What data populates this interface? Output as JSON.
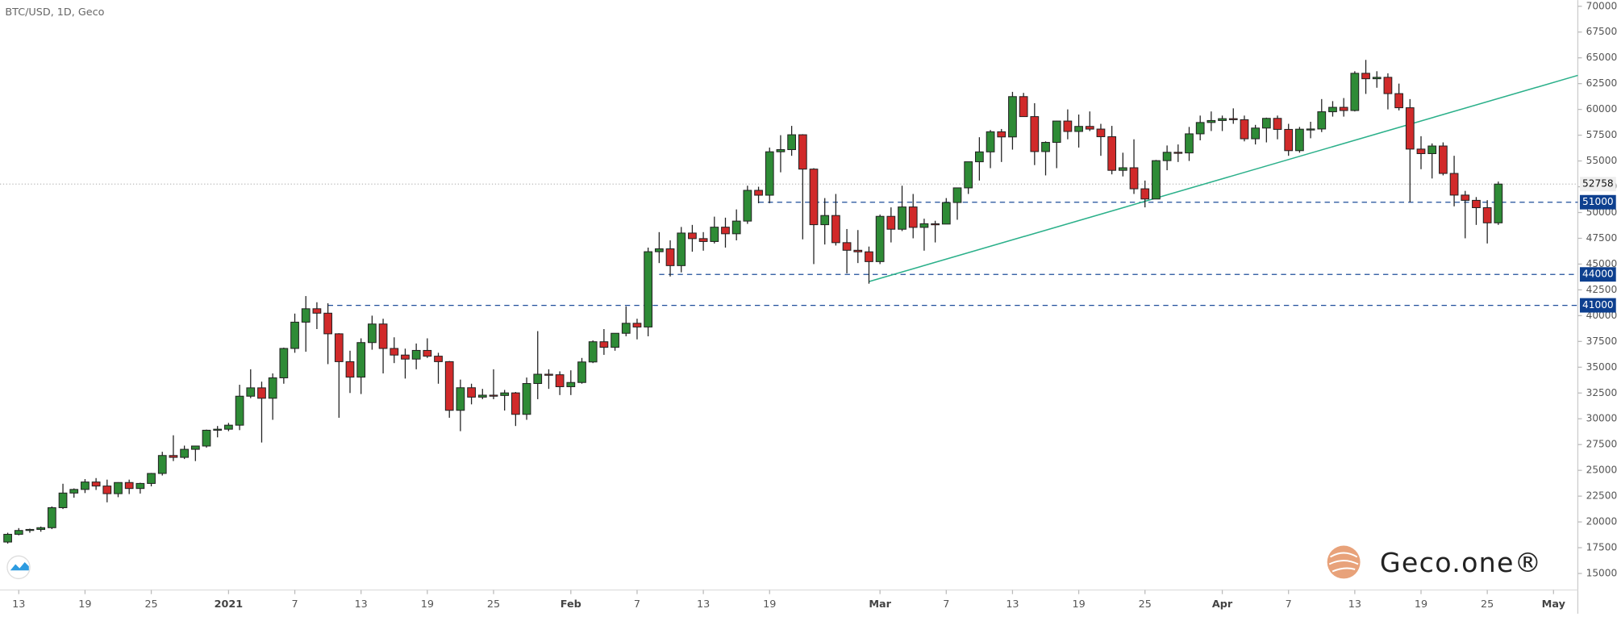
{
  "chart_data": {
    "type": "candlestick",
    "title": "BTC/USD, 1D, Geco",
    "watermark": "Geco.one®",
    "up_color": "#2e8b36",
    "down_color": "#d12a2a",
    "xlim": [
      -0.7,
      142.2
    ],
    "ylim": [
      13600,
      70600
    ],
    "yticks": [
      15000,
      17500,
      20000,
      22500,
      25000,
      27500,
      30000,
      32500,
      35000,
      37500,
      40000,
      42500,
      45000,
      47500,
      50000,
      52500,
      55000,
      57500,
      60000,
      62500,
      65000,
      67500,
      70000
    ],
    "xticks": [
      {
        "value": 1,
        "label": "13"
      },
      {
        "value": 7,
        "label": "19"
      },
      {
        "value": 13,
        "label": "25"
      },
      {
        "value": 20,
        "label": "2021"
      },
      {
        "value": 26,
        "label": "7"
      },
      {
        "value": 32,
        "label": "13"
      },
      {
        "value": 38,
        "label": "19"
      },
      {
        "value": 44,
        "label": "25"
      },
      {
        "value": 51,
        "label": "Feb"
      },
      {
        "value": 57,
        "label": "7"
      },
      {
        "value": 63,
        "label": "13"
      },
      {
        "value": 69,
        "label": "19"
      },
      {
        "value": 79,
        "label": "Mar"
      },
      {
        "value": 85,
        "label": "7"
      },
      {
        "value": 91,
        "label": "13"
      },
      {
        "value": 97,
        "label": "19"
      },
      {
        "value": 103,
        "label": "25"
      },
      {
        "value": 110,
        "label": "Apr"
      },
      {
        "value": 116,
        "label": "7"
      },
      {
        "value": 122,
        "label": "13"
      },
      {
        "value": 128,
        "label": "19"
      },
      {
        "value": 134,
        "label": "25"
      },
      {
        "value": 140,
        "label": "May"
      }
    ],
    "levels": [
      {
        "value": 51000,
        "start": 68
      },
      {
        "value": 44000,
        "start": 59
      },
      {
        "value": 41000,
        "start": 29
      }
    ],
    "last_price": 52758,
    "trendline": {
      "x": [
        78,
        142.2
      ],
      "y": [
        43300,
        63300
      ]
    },
    "candles": [
      [
        18050,
        18950,
        17900,
        18800
      ],
      [
        18800,
        19400,
        18700,
        19170
      ],
      [
        19170,
        19350,
        18950,
        19270
      ],
      [
        19270,
        19550,
        19050,
        19440
      ],
      [
        19440,
        21500,
        19300,
        21380
      ],
      [
        21380,
        23700,
        21250,
        22800
      ],
      [
        22800,
        23250,
        22350,
        23150
      ],
      [
        23150,
        24150,
        22800,
        23870
      ],
      [
        23870,
        24250,
        23100,
        23480
      ],
      [
        23480,
        24100,
        21900,
        22740
      ],
      [
        22740,
        23850,
        22400,
        23820
      ],
      [
        23820,
        24100,
        22700,
        23240
      ],
      [
        23240,
        23800,
        22750,
        23730
      ],
      [
        23730,
        24750,
        23450,
        24700
      ],
      [
        24700,
        26800,
        24500,
        26440
      ],
      [
        26440,
        28400,
        25900,
        26260
      ],
      [
        26260,
        27400,
        26100,
        27040
      ],
      [
        27040,
        27400,
        25900,
        27360
      ],
      [
        27360,
        28950,
        27200,
        28890
      ],
      [
        28890,
        29300,
        28200,
        28990
      ],
      [
        28990,
        29600,
        28800,
        29380
      ],
      [
        29380,
        33300,
        28900,
        32190
      ],
      [
        32190,
        34800,
        32000,
        33000
      ],
      [
        33000,
        33600,
        27700,
        31990
      ],
      [
        31990,
        34400,
        29900,
        33970
      ],
      [
        33970,
        36900,
        33400,
        36820
      ],
      [
        36820,
        40200,
        36400,
        39370
      ],
      [
        39370,
        41900,
        36500,
        40670
      ],
      [
        40670,
        41300,
        38700,
        40240
      ],
      [
        40240,
        41200,
        35300,
        38240
      ],
      [
        38240,
        38300,
        30100,
        35540
      ],
      [
        35540,
        36600,
        32500,
        34040
      ],
      [
        34040,
        37800,
        32400,
        37390
      ],
      [
        37390,
        40000,
        36700,
        39190
      ],
      [
        39190,
        39700,
        34400,
        36820
      ],
      [
        36820,
        37900,
        35400,
        36180
      ],
      [
        36180,
        36800,
        33900,
        35790
      ],
      [
        35790,
        37300,
        34800,
        36630
      ],
      [
        36630,
        37800,
        35900,
        36070
      ],
      [
        36070,
        36400,
        33400,
        35540
      ],
      [
        35540,
        35600,
        30100,
        30820
      ],
      [
        30820,
        33800,
        28800,
        33010
      ],
      [
        33010,
        33400,
        31400,
        32100
      ],
      [
        32100,
        32900,
        31900,
        32290
      ],
      [
        32290,
        34800,
        31900,
        32260
      ],
      [
        32260,
        32800,
        30800,
        32510
      ],
      [
        32510,
        32600,
        29300,
        30430
      ],
      [
        30430,
        34000,
        29900,
        33420
      ],
      [
        33420,
        38500,
        31900,
        34320
      ],
      [
        34320,
        34800,
        32900,
        34270
      ],
      [
        34270,
        34600,
        32300,
        33110
      ],
      [
        33110,
        34700,
        32300,
        33520
      ],
      [
        33520,
        35900,
        33400,
        35510
      ],
      [
        35510,
        37600,
        35400,
        37470
      ],
      [
        37470,
        38700,
        36200,
        36930
      ],
      [
        36930,
        38300,
        36600,
        38290
      ],
      [
        38290,
        40900,
        38000,
        39260
      ],
      [
        39260,
        39700,
        37700,
        38900
      ],
      [
        38900,
        46600,
        38000,
        46200
      ],
      [
        46200,
        48100,
        45100,
        46480
      ],
      [
        46480,
        47300,
        43800,
        44850
      ],
      [
        44850,
        48600,
        44200,
        48010
      ],
      [
        48010,
        48800,
        46200,
        47470
      ],
      [
        47470,
        48100,
        46300,
        47190
      ],
      [
        47190,
        49600,
        47000,
        48580
      ],
      [
        48580,
        49500,
        46600,
        47940
      ],
      [
        47940,
        50300,
        47300,
        49170
      ],
      [
        49170,
        52600,
        48900,
        52150
      ],
      [
        52150,
        52500,
        50900,
        51680
      ],
      [
        51680,
        56300,
        50900,
        55890
      ],
      [
        55890,
        57500,
        53900,
        56100
      ],
      [
        56100,
        58400,
        55500,
        57540
      ],
      [
        57540,
        57600,
        47400,
        54210
      ],
      [
        54210,
        54300,
        45000,
        48820
      ],
      [
        48820,
        51400,
        46900,
        49710
      ],
      [
        49710,
        51800,
        46800,
        47080
      ],
      [
        47080,
        48400,
        44100,
        46340
      ],
      [
        46340,
        48300,
        45100,
        46190
      ],
      [
        46190,
        46700,
        43100,
        45240
      ],
      [
        45240,
        49800,
        45000,
        49630
      ],
      [
        49630,
        50500,
        47100,
        48380
      ],
      [
        48380,
        52600,
        48200,
        50540
      ],
      [
        50540,
        51800,
        47500,
        48560
      ],
      [
        48560,
        49400,
        46300,
        48910
      ],
      [
        48910,
        49200,
        47100,
        48880
      ],
      [
        48880,
        51400,
        48900,
        50970
      ],
      [
        50970,
        52400,
        49300,
        52390
      ],
      [
        52390,
        54900,
        51800,
        54920
      ],
      [
        54920,
        57300,
        53100,
        55880
      ],
      [
        55880,
        58000,
        54300,
        57830
      ],
      [
        57830,
        58100,
        54900,
        57330
      ],
      [
        57330,
        61700,
        56100,
        61240
      ],
      [
        61240,
        61600,
        59300,
        59300
      ],
      [
        59300,
        60600,
        54600,
        55910
      ],
      [
        55910,
        56900,
        53600,
        56800
      ],
      [
        56800,
        58900,
        54300,
        58870
      ],
      [
        58870,
        60000,
        57100,
        57860
      ],
      [
        57860,
        59500,
        56300,
        58350
      ],
      [
        58350,
        59800,
        57900,
        58090
      ],
      [
        58090,
        58600,
        55500,
        57350
      ],
      [
        57350,
        58400,
        53700,
        54090
      ],
      [
        54090,
        55800,
        53500,
        54340
      ],
      [
        54340,
        57100,
        51800,
        52300
      ],
      [
        52300,
        53100,
        50500,
        51310
      ],
      [
        51310,
        55100,
        51300,
        55030
      ],
      [
        55030,
        56500,
        54100,
        55840
      ],
      [
        55840,
        56600,
        54900,
        55780
      ],
      [
        55780,
        58300,
        55000,
        57630
      ],
      [
        57630,
        59400,
        57000,
        58730
      ],
      [
        58730,
        59800,
        57900,
        58920
      ],
      [
        58920,
        59400,
        57900,
        59100
      ],
      [
        59100,
        60100,
        58600,
        59000
      ],
      [
        59000,
        59400,
        56900,
        57150
      ],
      [
        57150,
        58500,
        56600,
        58190
      ],
      [
        58190,
        59200,
        56800,
        59130
      ],
      [
        59130,
        59400,
        57100,
        58060
      ],
      [
        58060,
        58600,
        55500,
        56000
      ],
      [
        56000,
        58300,
        55800,
        58080
      ],
      [
        58080,
        58800,
        57200,
        58100
      ],
      [
        58100,
        61000,
        57800,
        59770
      ],
      [
        59770,
        60800,
        59300,
        60200
      ],
      [
        60200,
        61100,
        59300,
        59890
      ],
      [
        59890,
        63700,
        59800,
        63500
      ],
      [
        63500,
        64800,
        61500,
        62970
      ],
      [
        62970,
        63700,
        62100,
        63110
      ],
      [
        63110,
        63500,
        60000,
        61530
      ],
      [
        61530,
        62500,
        59900,
        60160
      ],
      [
        60160,
        61000,
        51000,
        56150
      ],
      [
        56150,
        57400,
        54200,
        55710
      ],
      [
        55710,
        56700,
        53300,
        56450
      ],
      [
        56450,
        56800,
        53600,
        53790
      ],
      [
        53790,
        55500,
        50600,
        51690
      ],
      [
        51690,
        52100,
        47500,
        51180
      ],
      [
        51180,
        51500,
        48800,
        50470
      ],
      [
        50470,
        51200,
        47000,
        49000
      ],
      [
        49000,
        53000,
        48800,
        52758
      ]
    ]
  }
}
